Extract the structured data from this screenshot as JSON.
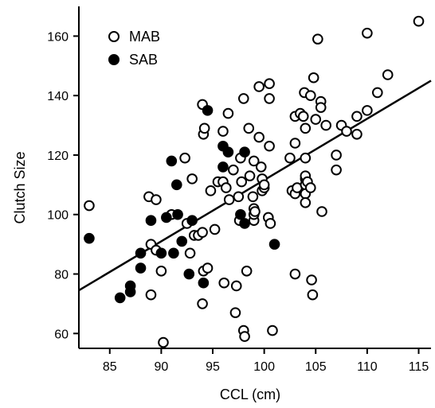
{
  "chart_data": {
    "type": "scatter",
    "title": "",
    "xlabel": "CCL (cm)",
    "ylabel": "Clutch Size",
    "xlim": [
      82,
      116.2
    ],
    "ylim": [
      55,
      170
    ],
    "xticks": [
      85,
      90,
      95,
      100,
      105,
      110,
      115
    ],
    "yticks": [
      60,
      80,
      100,
      120,
      140,
      160
    ],
    "grid": false,
    "legend_position": "top-left",
    "series": [
      {
        "name": "MAB",
        "marker": "open-circle",
        "color": "#000000",
        "points": [
          [
            83.0,
            103
          ],
          [
            88.8,
            106
          ],
          [
            89.0,
            90
          ],
          [
            89.5,
            88
          ],
          [
            89.5,
            105
          ],
          [
            90.0,
            81
          ],
          [
            89.0,
            73
          ],
          [
            90.2,
            57
          ],
          [
            91.0,
            100
          ],
          [
            92.3,
            119
          ],
          [
            92.5,
            97
          ],
          [
            92.8,
            87
          ],
          [
            93.0,
            112
          ],
          [
            93.2,
            93
          ],
          [
            93.6,
            93
          ],
          [
            94.0,
            94
          ],
          [
            94.0,
            137
          ],
          [
            94.1,
            127
          ],
          [
            94.2,
            129
          ],
          [
            94.1,
            81
          ],
          [
            94.5,
            82
          ],
          [
            94.0,
            70
          ],
          [
            94.8,
            108
          ],
          [
            95.2,
            95
          ],
          [
            95.5,
            111
          ],
          [
            96.0,
            111
          ],
          [
            96.0,
            128
          ],
          [
            96.1,
            77
          ],
          [
            96.5,
            134
          ],
          [
            96.3,
            109
          ],
          [
            96.6,
            105
          ],
          [
            97.0,
            115
          ],
          [
            97.2,
            67
          ],
          [
            97.3,
            76
          ],
          [
            97.5,
            106
          ],
          [
            97.7,
            119
          ],
          [
            97.8,
            111
          ],
          [
            97.6,
            98
          ],
          [
            98.0,
            139
          ],
          [
            98.0,
            61
          ],
          [
            98.1,
            59
          ],
          [
            98.3,
            81
          ],
          [
            98.5,
            129
          ],
          [
            98.6,
            113
          ],
          [
            98.9,
            106
          ],
          [
            99.0,
            118
          ],
          [
            99.0,
            98
          ],
          [
            99.0,
            100
          ],
          [
            99.0,
            102
          ],
          [
            99.1,
            101
          ],
          [
            99.5,
            143
          ],
          [
            99.5,
            126
          ],
          [
            99.7,
            116
          ],
          [
            99.8,
            108
          ],
          [
            99.8,
            112
          ],
          [
            100.0,
            109
          ],
          [
            100.0,
            110
          ],
          [
            100.4,
            99
          ],
          [
            100.5,
            144
          ],
          [
            100.5,
            139
          ],
          [
            100.5,
            123
          ],
          [
            100.6,
            97
          ],
          [
            100.8,
            61
          ],
          [
            102.5,
            119
          ],
          [
            102.7,
            108
          ],
          [
            103.0,
            133
          ],
          [
            103.0,
            107
          ],
          [
            103.0,
            124
          ],
          [
            103.0,
            80
          ],
          [
            103.2,
            109
          ],
          [
            103.5,
            134
          ],
          [
            103.8,
            133
          ],
          [
            103.9,
            141
          ],
          [
            104.0,
            129
          ],
          [
            104.0,
            119
          ],
          [
            104.0,
            112
          ],
          [
            104.0,
            113
          ],
          [
            104.0,
            110
          ],
          [
            104.0,
            107
          ],
          [
            104.0,
            104
          ],
          [
            104.2,
            111
          ],
          [
            104.5,
            140
          ],
          [
            104.5,
            109
          ],
          [
            104.6,
            78
          ],
          [
            104.7,
            73
          ],
          [
            104.8,
            146
          ],
          [
            105.0,
            132
          ],
          [
            105.2,
            159
          ],
          [
            105.5,
            138
          ],
          [
            105.5,
            136
          ],
          [
            105.6,
            101
          ],
          [
            106.0,
            130
          ],
          [
            107.0,
            120
          ],
          [
            107.0,
            115
          ],
          [
            107.5,
            130
          ],
          [
            108.0,
            128
          ],
          [
            109.0,
            133
          ],
          [
            109.0,
            127
          ],
          [
            110.0,
            135
          ],
          [
            110.0,
            161
          ],
          [
            111.0,
            141
          ],
          [
            112.0,
            147
          ],
          [
            115.0,
            165
          ]
        ]
      },
      {
        "name": "SAB",
        "marker": "filled-circle",
        "color": "#000000",
        "points": [
          [
            83.0,
            92
          ],
          [
            86.0,
            72
          ],
          [
            87.0,
            76
          ],
          [
            87.0,
            74
          ],
          [
            88.0,
            87
          ],
          [
            88.0,
            82
          ],
          [
            89.0,
            98
          ],
          [
            90.0,
            87
          ],
          [
            90.5,
            99
          ],
          [
            91.0,
            118
          ],
          [
            91.2,
            87
          ],
          [
            91.5,
            110
          ],
          [
            91.6,
            100
          ],
          [
            92.0,
            91
          ],
          [
            92.7,
            80
          ],
          [
            93.0,
            98
          ],
          [
            94.1,
            77
          ],
          [
            94.5,
            135
          ],
          [
            96.0,
            123
          ],
          [
            96.0,
            116
          ],
          [
            96.5,
            121
          ],
          [
            97.7,
            100
          ],
          [
            98.1,
            121
          ],
          [
            98.1,
            97
          ],
          [
            101.0,
            90
          ]
        ]
      }
    ],
    "fit_line": {
      "type": "linear",
      "points": [
        [
          82,
          74.5
        ],
        [
          116.2,
          145
        ]
      ]
    }
  }
}
